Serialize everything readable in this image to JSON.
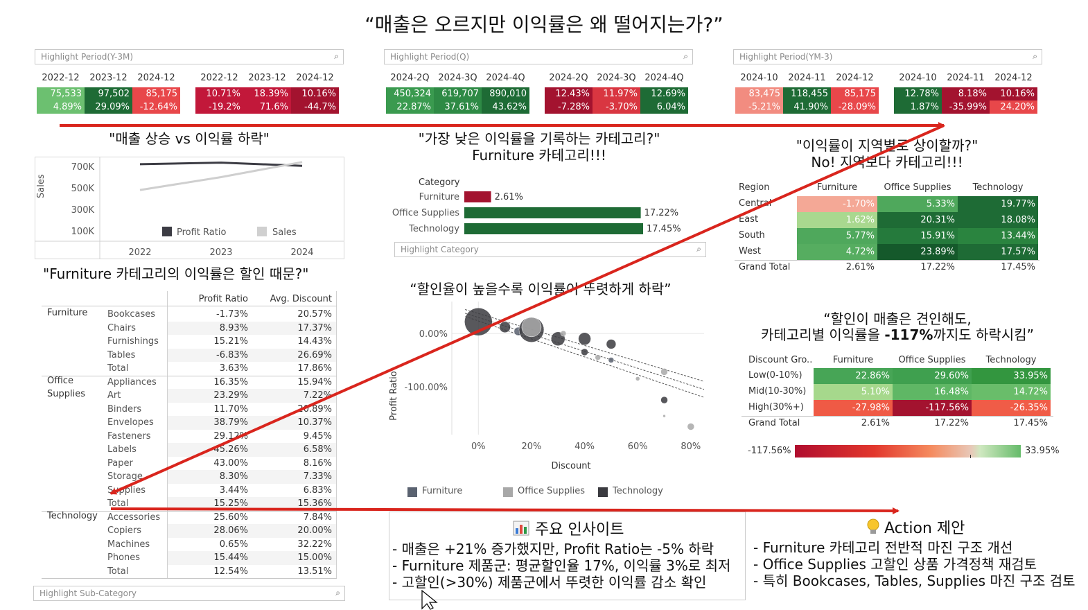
{
  "title": "“매출은 오르지만 이익률은 왜 떨어지는가?”",
  "filters": {
    "period_y3m": "Highlight Period(Y-3M)",
    "period_q": "Highlight Period(Q)",
    "period_ym3": "Highlight Period(YM-3)",
    "category": "Highlight Category",
    "subcategory": "Highlight Sub-Category"
  },
  "kpi_yearly": {
    "sales_headers": [
      "2022-12",
      "2023-12",
      "2024-12"
    ],
    "sales_values": [
      "75,533",
      "97,502",
      "85,175"
    ],
    "sales_growth": [
      "4.89%",
      "29.09%",
      "-12.64%"
    ],
    "ratio_headers": [
      "2022-12",
      "2023-12",
      "2024-12"
    ],
    "ratio_values": [
      "10.71%",
      "18.39%",
      "10.16%"
    ],
    "ratio_growth": [
      "-19.2%",
      "71.6%",
      "-44.7%"
    ]
  },
  "kpi_quarterly": {
    "sales_headers": [
      "2024-2Q",
      "2024-3Q",
      "2024-4Q"
    ],
    "sales_values": [
      "450,324",
      "619,707",
      "890,010"
    ],
    "sales_growth": [
      "22.87%",
      "37.61%",
      "43.62%"
    ],
    "ratio_headers": [
      "2024-2Q",
      "2024-3Q",
      "2024-4Q"
    ],
    "ratio_values": [
      "12.43%",
      "11.97%",
      "12.69%"
    ],
    "ratio_growth": [
      "-7.28%",
      "-3.70%",
      "6.04%"
    ]
  },
  "kpi_monthly": {
    "sales_headers": [
      "2024-10",
      "2024-11",
      "2024-12"
    ],
    "sales_values": [
      "83,475",
      "118,455",
      "85,175"
    ],
    "sales_growth": [
      "-5.21%",
      "41.90%",
      "-28.09%"
    ],
    "ratio_headers": [
      "2024-10",
      "2024-11",
      "2024-12"
    ],
    "ratio_values": [
      "12.78%",
      "8.18%",
      "10.16%"
    ],
    "ratio_growth": [
      "1.87%",
      "-35.99%",
      "24.20%"
    ]
  },
  "colors": {
    "dark_green": "#1e6b35",
    "green": "#3a9a4f",
    "light_green": "#6cc070",
    "dark_red": "#a3132f",
    "red": "#e8474a",
    "light_red": "#f28c80",
    "arrow": "#d9251d"
  },
  "sales_trend": {
    "title": "\"매출 상승 vs 이익률 하락\"",
    "ylabel": "Sales",
    "legend_profit": "Profit Ratio",
    "legend_sales": "Sales",
    "chart_data": {
      "type": "line",
      "x": [
        "2022",
        "2023",
        "2024"
      ],
      "y_ticks": [
        "700K",
        "500K",
        "300K",
        "100K"
      ],
      "ylim": [
        0,
        800000
      ],
      "series": [
        {
          "name": "Profit Ratio",
          "values": [
            720000,
            735000,
            705000
          ]
        },
        {
          "name": "Sales",
          "values": [
            480000,
            600000,
            740000
          ]
        }
      ]
    }
  },
  "category_bar": {
    "title": "\"가장 낮은 이익률을 기록하는 카테고리?\"",
    "subtitle": "Furniture 카테고리!!!",
    "header": "Category",
    "chart_data": {
      "type": "bar",
      "categories": [
        "Furniture",
        "Office Supplies",
        "Technology"
      ],
      "values": [
        2.61,
        17.22,
        17.45
      ],
      "labels": [
        "2.61%",
        "17.22%",
        "17.45%"
      ]
    }
  },
  "region_table": {
    "title": "\"이익률이 지역별로 상이할까?\"",
    "subtitle": "No! 지역보다 카테고리!!!",
    "col_header": "Region",
    "columns": [
      "Furniture",
      "Office Supplies",
      "Technology"
    ],
    "rows": [
      {
        "name": "Central",
        "vals": [
          "-1.70%",
          "5.33%",
          "19.77%"
        ],
        "colors": [
          "#f4a896",
          "#4fa85c",
          "#1e6b35"
        ]
      },
      {
        "name": "East",
        "vals": [
          "1.62%",
          "20.31%",
          "18.08%"
        ],
        "colors": [
          "#a9d88f",
          "#1e6b35",
          "#1e6b35"
        ]
      },
      {
        "name": "South",
        "vals": [
          "5.77%",
          "15.91%",
          "13.44%"
        ],
        "colors": [
          "#4fa85c",
          "#257a3c",
          "#2a843f"
        ]
      },
      {
        "name": "West",
        "vals": [
          "4.72%",
          "23.89%",
          "17.57%"
        ],
        "colors": [
          "#56ad60",
          "#15592b",
          "#1e6b35"
        ]
      }
    ],
    "total_label": "Grand Total",
    "totals": [
      "2.61%",
      "17.22%",
      "17.45%"
    ]
  },
  "subcat_table": {
    "title": "\"Furniture 카테고리의 이익률은 할인 때문?\"",
    "col_profit": "Profit Ratio",
    "col_discount": "Avg. Discount",
    "groups": [
      {
        "category": "Furniture",
        "rows": [
          [
            "Bookcases",
            "-1.73%",
            "20.57%"
          ],
          [
            "Chairs",
            "8.93%",
            "17.37%"
          ],
          [
            "Furnishings",
            "15.21%",
            "14.43%"
          ],
          [
            "Tables",
            "-6.83%",
            "26.69%"
          ],
          [
            "Total",
            "3.63%",
            "17.86%"
          ]
        ]
      },
      {
        "category": "Office Supplies",
        "rows": [
          [
            "Appliances",
            "16.35%",
            "15.94%"
          ],
          [
            "Art",
            "23.29%",
            "7.22%"
          ],
          [
            "Binders",
            "11.70%",
            "20.89%"
          ],
          [
            "Envelopes",
            "38.79%",
            "10.37%"
          ],
          [
            "Fasteners",
            "29.12%",
            "9.45%"
          ],
          [
            "Labels",
            "45.26%",
            "6.58%"
          ],
          [
            "Paper",
            "43.00%",
            "8.16%"
          ],
          [
            "Storage",
            "8.30%",
            "7.33%"
          ],
          [
            "Supplies",
            "3.44%",
            "6.83%"
          ],
          [
            "Total",
            "15.25%",
            "15.36%"
          ]
        ]
      },
      {
        "category": "Technology",
        "rows": [
          [
            "Accessories",
            "25.60%",
            "7.84%"
          ],
          [
            "Copiers",
            "28.06%",
            "20.00%"
          ],
          [
            "Machines",
            "0.65%",
            "32.22%"
          ],
          [
            "Phones",
            "15.44%",
            "15.00%"
          ],
          [
            "Total",
            "12.54%",
            "13.51%"
          ]
        ]
      }
    ]
  },
  "scatter": {
    "title": "“할인율이 높을수록 이익률이 뚜렷하게 하락”",
    "xlabel": "Discount",
    "ylabel": "Profit Ratio",
    "x_ticks": [
      "0%",
      "20%",
      "40%",
      "60%",
      "80%"
    ],
    "y_ticks": [
      "0.00%",
      "-100.00%"
    ],
    "legend": [
      "Furniture",
      "Office Supplies",
      "Technology"
    ],
    "chart_data": {
      "type": "scatter",
      "xlim": [
        -0.1,
        0.85
      ],
      "ylim": [
        -1.9,
        0.6
      ],
      "points": [
        {
          "x": 0.0,
          "y": 0.22,
          "r": 20,
          "s": "Technology"
        },
        {
          "x": 0.1,
          "y": 0.12,
          "r": 8,
          "s": "Technology"
        },
        {
          "x": 0.15,
          "y": 0.04,
          "r": 6,
          "s": "Furniture"
        },
        {
          "x": 0.2,
          "y": 0.07,
          "r": 18,
          "s": "Technology"
        },
        {
          "x": 0.2,
          "y": 0.12,
          "r": 14,
          "s": "Office Supplies"
        },
        {
          "x": 0.3,
          "y": -0.1,
          "r": 10,
          "s": "Technology"
        },
        {
          "x": 0.32,
          "y": 0.0,
          "r": 4,
          "s": "Office Supplies"
        },
        {
          "x": 0.4,
          "y": -0.1,
          "r": 9,
          "s": "Technology"
        },
        {
          "x": 0.4,
          "y": -0.35,
          "r": 5,
          "s": "Technology"
        },
        {
          "x": 0.45,
          "y": -0.45,
          "r": 4,
          "s": "Office Supplies"
        },
        {
          "x": 0.5,
          "y": -0.5,
          "r": 4,
          "s": "Furniture"
        },
        {
          "x": 0.5,
          "y": -0.2,
          "r": 7,
          "s": "Technology"
        },
        {
          "x": 0.6,
          "y": -0.85,
          "r": 3,
          "s": "Office Supplies"
        },
        {
          "x": 0.7,
          "y": -0.72,
          "r": 5,
          "s": "Office Supplies"
        },
        {
          "x": 0.7,
          "y": -1.25,
          "r": 5,
          "s": "Technology"
        },
        {
          "x": 0.8,
          "y": -1.75,
          "r": 5,
          "s": "Office Supplies"
        },
        {
          "x": 0.7,
          "y": -1.55,
          "r": 2,
          "s": "Office Supplies"
        }
      ]
    }
  },
  "discount_table": {
    "title_line1": "“할인이 매출은 견인해도,",
    "title_line2_pre": "카테고리별 이익률을 ",
    "title_line2_bold": "-117%",
    "title_line2_post": "까지도 하락시킴”",
    "col_header": "Discount Gro..",
    "columns": [
      "Furniture",
      "Office Supplies",
      "Technology"
    ],
    "rows": [
      {
        "name": "Low(0-10%)",
        "vals": [
          "22.86%",
          "29.60%",
          "33.95%"
        ],
        "colors": [
          "#47a556",
          "#3fa04f",
          "#33963f"
        ]
      },
      {
        "name": "Mid(10-30%)",
        "vals": [
          "5.10%",
          "16.48%",
          "14.72%"
        ],
        "colors": [
          "#a6d88c",
          "#5fb765",
          "#69bd6a"
        ]
      },
      {
        "name": "High(30%+)",
        "vals": [
          "-27.98%",
          "-117.56%",
          "-26.35%"
        ],
        "colors": [
          "#ef5a45",
          "#a3132f",
          "#f05c47"
        ]
      }
    ],
    "total_label": "Grand Total",
    "totals": [
      "2.61%",
      "17.22%",
      "17.45%"
    ],
    "scale_min": "-117.56%",
    "scale_max": "33.95%"
  },
  "insights": {
    "title": "주요 인사이트",
    "icon": "bar-chart-icon",
    "lines": [
      "- 매출은 +21% 증가했지만, Profit Ratio는 -5% 하락",
      "- Furniture 제품군: 평균할인율 17%, 이익률 3%로 최저",
      "- 고할인(>30%) 제품군에서 뚜렷한 이익률 감소 확인"
    ]
  },
  "actions": {
    "title": "Action 제안",
    "icon": "lightbulb-icon",
    "lines": [
      "- Furniture 카테고리 전반적 마진 구조 개선",
      "- Office Supplies 고할인 상품 가격정책 재검토",
      "- 특히 Bookcases, Tables, Supplies 마진 구조 검토"
    ]
  }
}
